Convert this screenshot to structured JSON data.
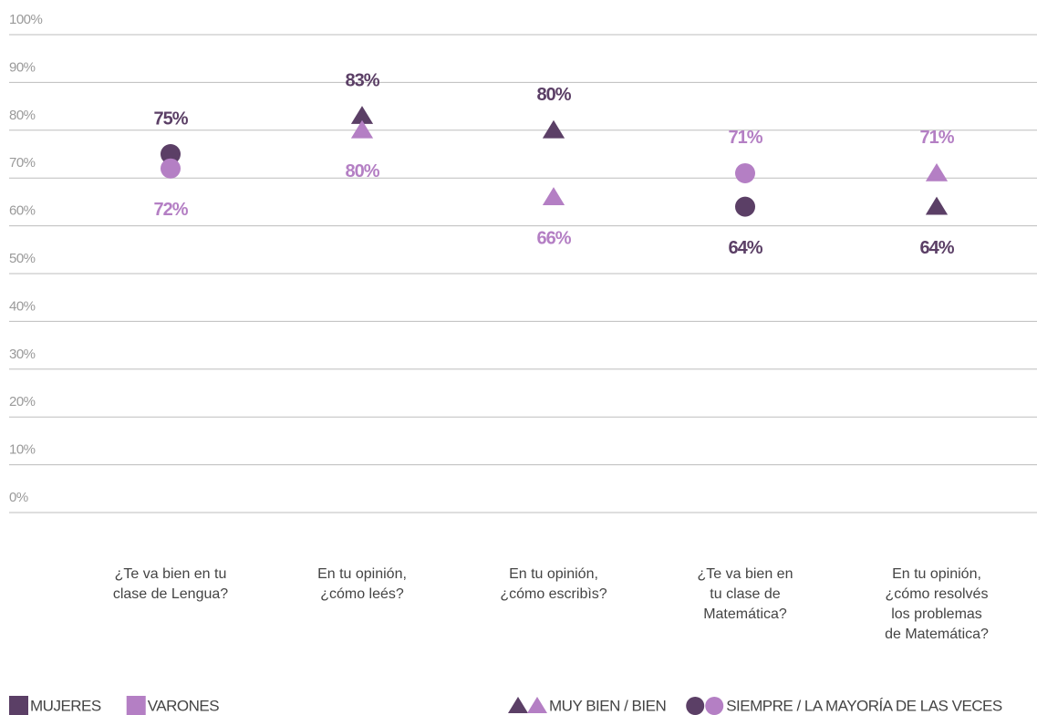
{
  "chart_data": {
    "type": "dot",
    "categories": [
      "¿Te va bien en tu\nclase de Lengua?",
      "En tu opinión,\n¿cómo leés?",
      "En tu opinión,\n¿cómo escribìs?",
      "¿Te va bien en\ntu clase de\nMatemática?",
      "En tu opinión,\n¿cómo resolvés\nlos problemas\nde  Matemática?"
    ],
    "markers": [
      "circle",
      "triangle",
      "triangle",
      "circle",
      "triangle"
    ],
    "series": [
      {
        "name": "MUJERES",
        "color": "#5b3f66",
        "values": [
          75,
          83,
          80,
          64,
          64
        ],
        "value_labels": [
          "75%",
          "83%",
          "80%",
          "64%",
          "64%"
        ]
      },
      {
        "name": "VARONES",
        "color": "#b47fc4",
        "values": [
          72,
          80,
          66,
          71,
          71
        ],
        "value_labels": [
          "72%",
          "80%",
          "66%",
          "71%",
          "71%"
        ]
      }
    ],
    "marker_legend": [
      {
        "marker": "triangle",
        "label": "MUY BIEN / BIEN"
      },
      {
        "marker": "circle",
        "label": "SIEMPRE / LA MAYORÍA DE LAS VECES"
      }
    ],
    "ylim": [
      0,
      100
    ],
    "yticks": [
      {
        "value": 0,
        "label": "0%"
      },
      {
        "value": 10,
        "label": "10%"
      },
      {
        "value": 20,
        "label": "20%"
      },
      {
        "value": 30,
        "label": "30%"
      },
      {
        "value": 40,
        "label": "40%"
      },
      {
        "value": 50,
        "label": "50%"
      },
      {
        "value": 60,
        "label": "60%"
      },
      {
        "value": 70,
        "label": "70%"
      },
      {
        "value": 80,
        "label": "80%"
      },
      {
        "value": 90,
        "label": "90%"
      },
      {
        "value": 100,
        "label": "100%"
      }
    ],
    "grid": true
  }
}
